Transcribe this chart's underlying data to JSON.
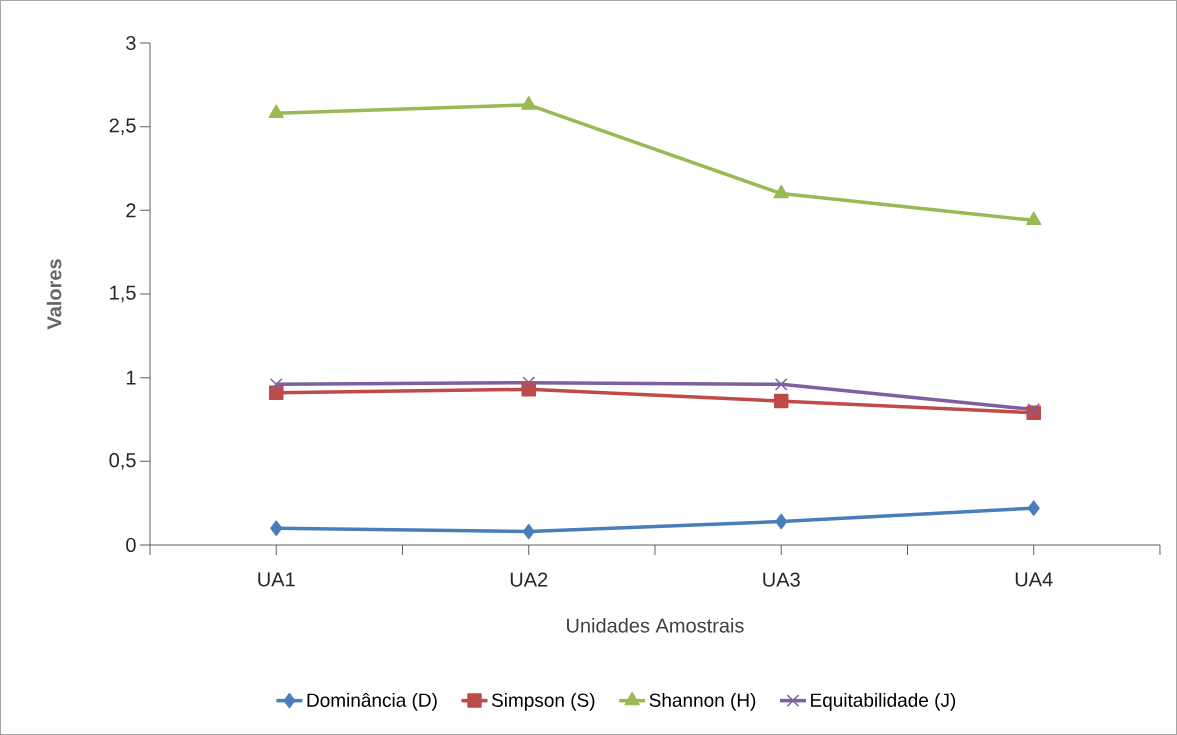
{
  "chart_data": {
    "type": "line",
    "xlabel": "Unidades Amostrais",
    "ylabel": "Valores",
    "categories": [
      "UA1",
      "UA2",
      "UA3",
      "UA4"
    ],
    "series": [
      {
        "name": "Dominância (D)",
        "color": "#4a7ebb",
        "marker": "diamond",
        "values": [
          0.1,
          0.08,
          0.14,
          0.22
        ]
      },
      {
        "name": "Simpson (S)",
        "color": "#be4b48",
        "marker": "square",
        "values": [
          0.91,
          0.93,
          0.86,
          0.79
        ]
      },
      {
        "name": "Shannon (H)",
        "color": "#98b954",
        "marker": "triangle",
        "values": [
          2.58,
          2.63,
          2.1,
          1.94
        ]
      },
      {
        "name": "Equitabilidade (J)",
        "color": "#7d60a0",
        "marker": "cross",
        "values": [
          0.96,
          0.97,
          0.96,
          0.81
        ]
      }
    ],
    "ylim": [
      0,
      3
    ],
    "yticks": [
      0,
      {
        "value": 0.5,
        "label": "0,5"
      },
      1,
      {
        "value": 1.5,
        "label": "1,5"
      },
      2,
      {
        "value": 2.5,
        "label": "2,5"
      },
      3
    ],
    "legend": "bottom",
    "grid": false,
    "line_style": "solid"
  }
}
